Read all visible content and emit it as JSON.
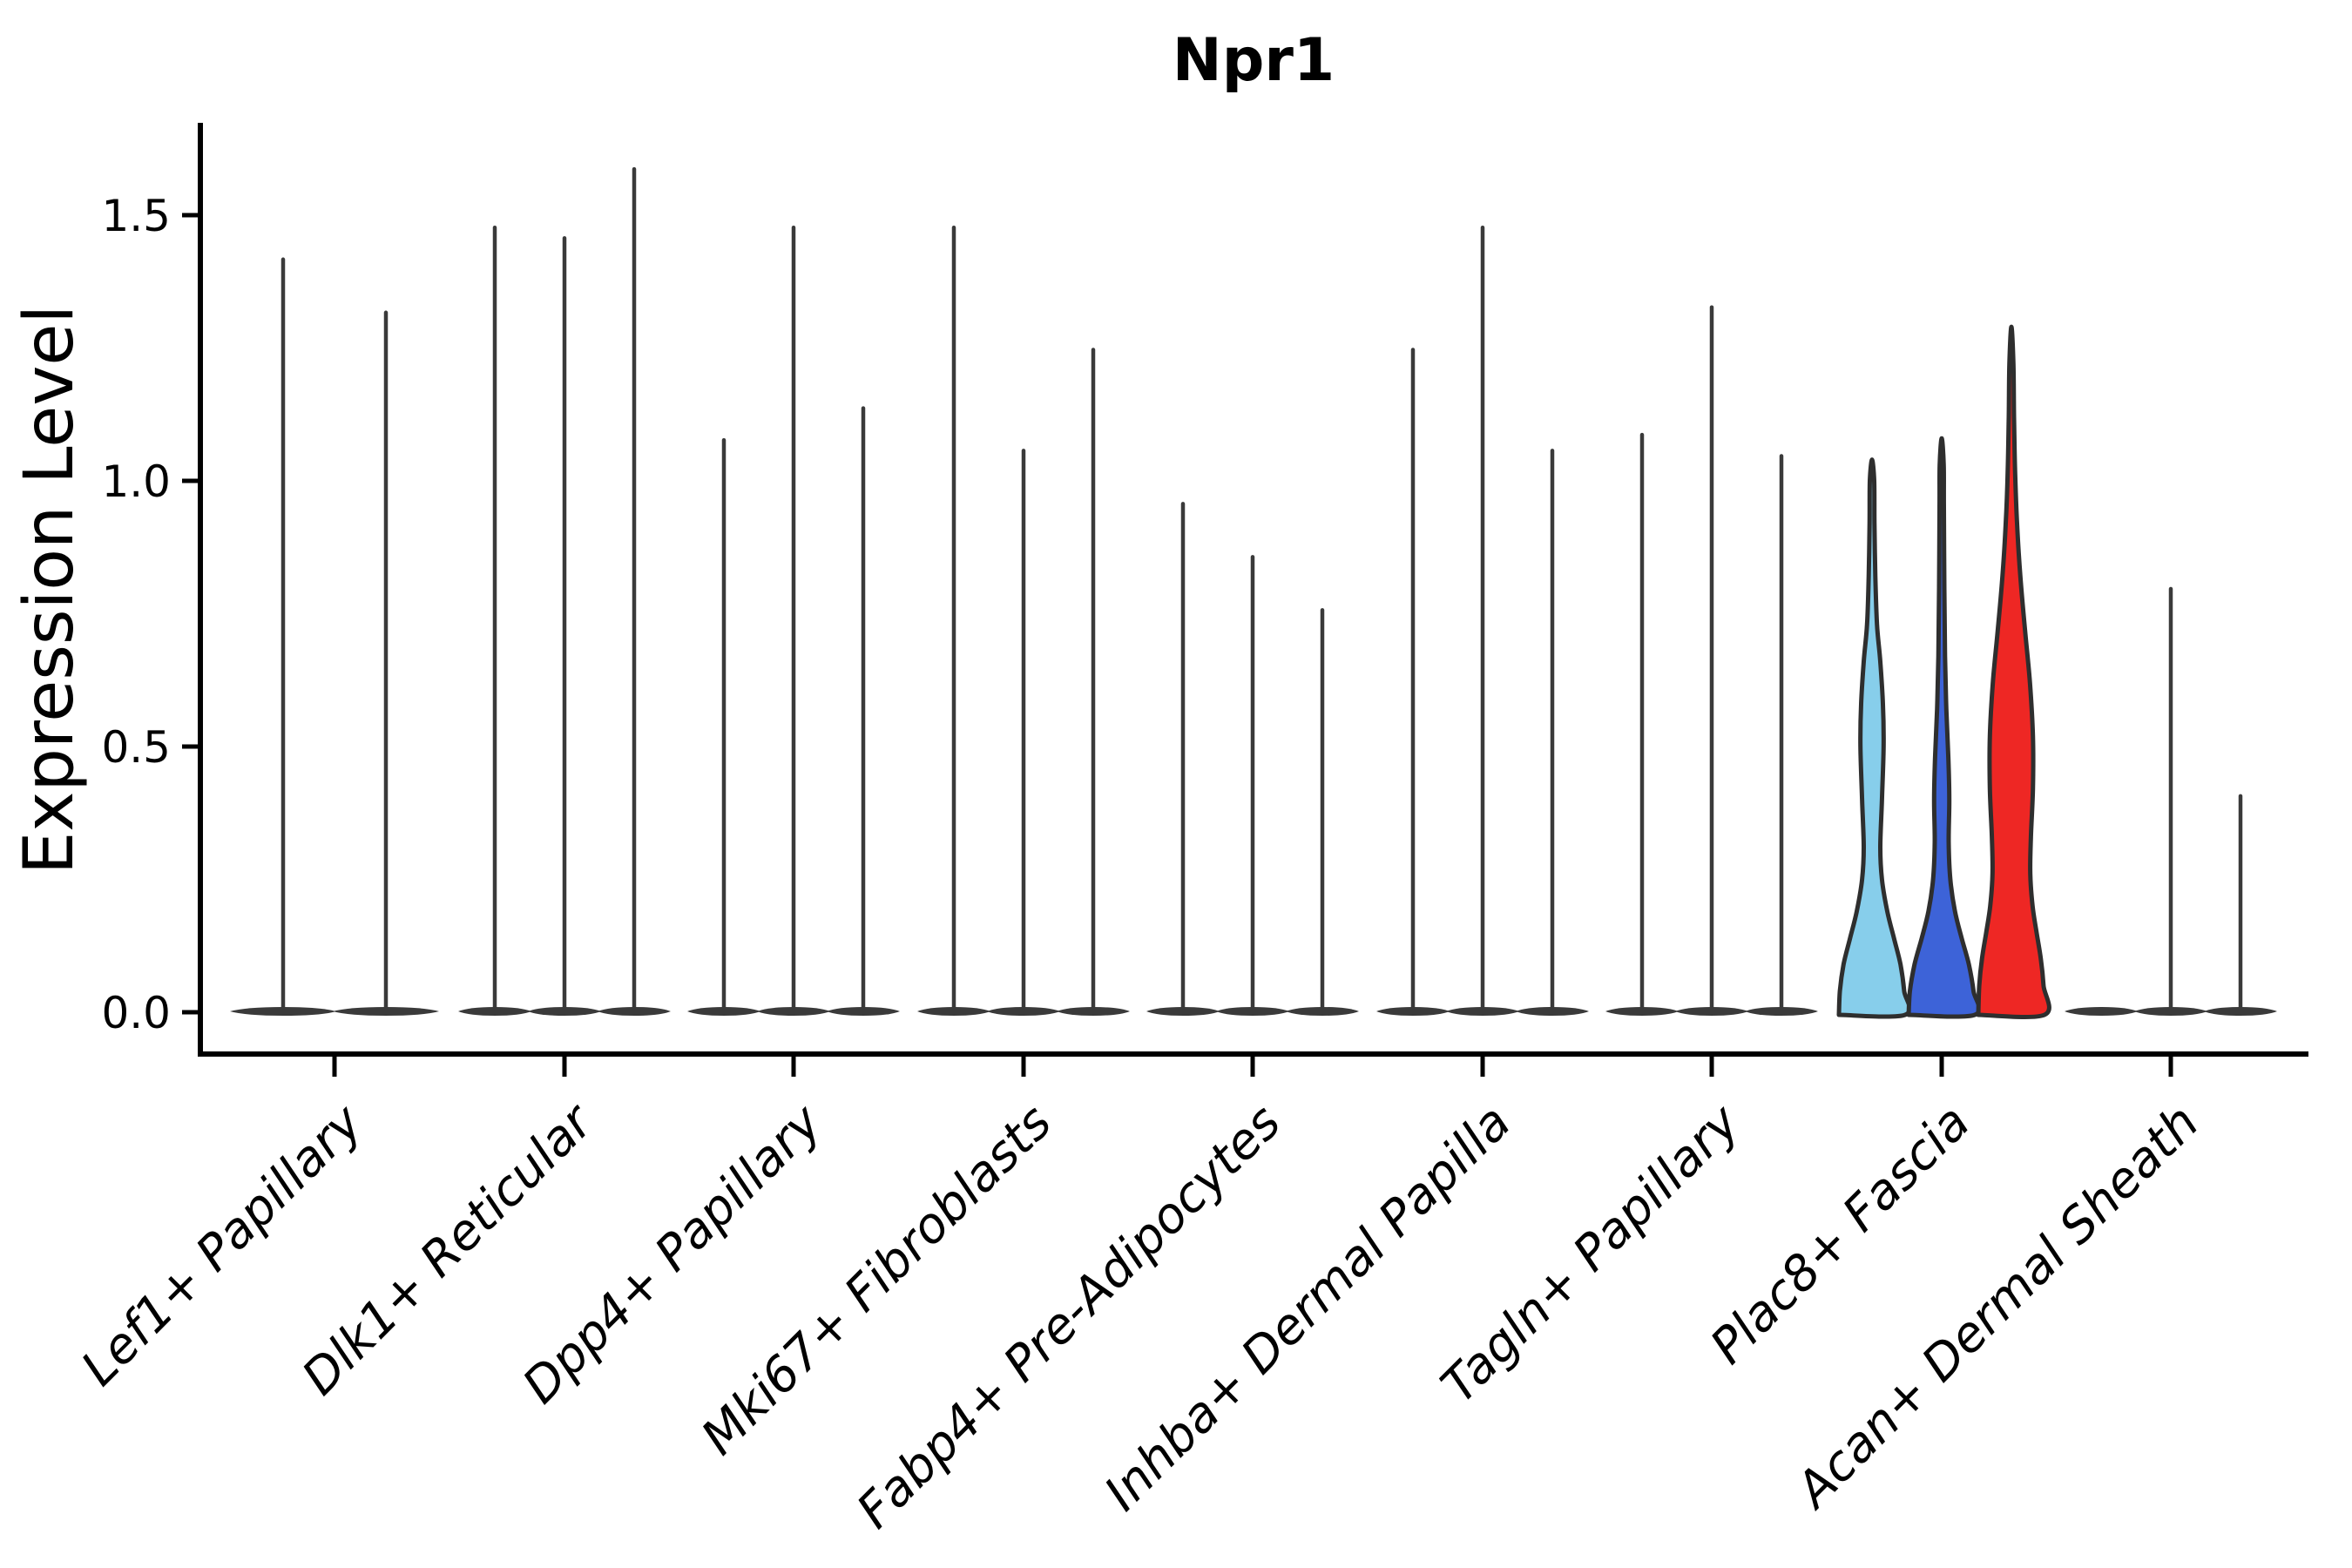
{
  "chart_data": {
    "type": "violin",
    "title": "Npr1",
    "xlabel": "",
    "ylabel": "Expression Level",
    "ytick_labels": [
      "0.0",
      "0.5",
      "1.0",
      "1.5"
    ],
    "ytick_values": [
      0,
      0.5,
      1.0,
      1.5
    ],
    "ylim": [
      -0.08,
      1.67
    ],
    "grid": false,
    "legend": "none",
    "highlighted_category": "Plac8+ Fascia",
    "categories": [
      "Lef1+ Papillary",
      "Dlk1+ Reticular",
      "Dpp4+ Papillary",
      "Mki67+ Fibroblasts",
      "Fabp4+ Pre-Adipocytes",
      "Inhba+ Dermal Papilla",
      "Tagln+ Papillary",
      "Plac8+ Fascia",
      "Acan+ Dermal Sheath"
    ],
    "groups": [
      {
        "category": "Lef1+ Papillary",
        "violins": [
          {
            "peak": 1.42,
            "style": "spike"
          },
          {
            "peak": 1.32,
            "style": "spike"
          }
        ]
      },
      {
        "category": "Dlk1+ Reticular",
        "violins": [
          {
            "peak": 1.48,
            "style": "spike"
          },
          {
            "peak": 1.46,
            "style": "spike"
          },
          {
            "peak": 1.59,
            "style": "spike"
          }
        ]
      },
      {
        "category": "Dpp4+ Papillary",
        "violins": [
          {
            "peak": 1.08,
            "style": "spike"
          },
          {
            "peak": 1.48,
            "style": "spike"
          },
          {
            "peak": 1.14,
            "style": "spike"
          }
        ]
      },
      {
        "category": "Mki67+ Fibroblasts",
        "violins": [
          {
            "peak": 1.48,
            "style": "spike"
          },
          {
            "peak": 1.06,
            "style": "spike"
          },
          {
            "peak": 1.25,
            "style": "spike"
          }
        ]
      },
      {
        "category": "Fabp4+ Pre-Adipocytes",
        "violins": [
          {
            "peak": 0.96,
            "style": "spike"
          },
          {
            "peak": 0.86,
            "style": "spike"
          },
          {
            "peak": 0.76,
            "style": "spike"
          }
        ]
      },
      {
        "category": "Inhba+ Dermal Papilla",
        "violins": [
          {
            "peak": 1.25,
            "style": "spike"
          },
          {
            "peak": 1.48,
            "style": "spike"
          },
          {
            "peak": 1.06,
            "style": "spike"
          }
        ]
      },
      {
        "category": "Tagln+ Papillary",
        "violins": [
          {
            "peak": 1.09,
            "style": "spike"
          },
          {
            "peak": 1.33,
            "style": "spike"
          },
          {
            "peak": 1.05,
            "style": "spike"
          }
        ]
      },
      {
        "category": "Plac8+ Fascia",
        "violins": [
          {
            "peak": 1.04,
            "style": "violin",
            "fill": "#87CEEB",
            "profile": [
              [
                0,
                1
              ],
              [
                0.04,
                0.97
              ],
              [
                0.09,
                0.86
              ],
              [
                0.14,
                0.66
              ],
              [
                0.19,
                0.46
              ],
              [
                0.25,
                0.3
              ],
              [
                0.31,
                0.25
              ],
              [
                0.4,
                0.3
              ],
              [
                0.5,
                0.35
              ],
              [
                0.58,
                0.33
              ],
              [
                0.66,
                0.25
              ],
              [
                0.73,
                0.15
              ],
              [
                0.82,
                0.1
              ],
              [
                0.92,
                0.075
              ],
              [
                1.0,
                0.065
              ]
            ]
          },
          {
            "peak": 1.08,
            "style": "violin",
            "fill": "#3D63D8",
            "profile": [
              [
                0,
                1
              ],
              [
                0.04,
                0.96
              ],
              [
                0.09,
                0.82
              ],
              [
                0.14,
                0.6
              ],
              [
                0.19,
                0.4
              ],
              [
                0.25,
                0.26
              ],
              [
                0.32,
                0.21
              ],
              [
                0.4,
                0.23
              ],
              [
                0.48,
                0.2
              ],
              [
                0.57,
                0.14
              ],
              [
                0.67,
                0.1
              ],
              [
                0.8,
                0.08
              ],
              [
                0.95,
                0.065
              ],
              [
                1.03,
                0.06
              ]
            ]
          },
          {
            "peak": 1.29,
            "style": "violin",
            "fill": "#EE2724",
            "profile": [
              [
                0,
                1
              ],
              [
                0.05,
                0.97
              ],
              [
                0.1,
                0.89
              ],
              [
                0.15,
                0.76
              ],
              [
                0.2,
                0.64
              ],
              [
                0.26,
                0.57
              ],
              [
                0.33,
                0.59
              ],
              [
                0.42,
                0.65
              ],
              [
                0.52,
                0.65
              ],
              [
                0.62,
                0.56
              ],
              [
                0.72,
                0.41
              ],
              [
                0.82,
                0.27
              ],
              [
                0.92,
                0.17
              ],
              [
                1.02,
                0.11
              ],
              [
                1.12,
                0.08
              ],
              [
                1.22,
                0.06
              ]
            ]
          }
        ]
      },
      {
        "category": "Acan+ Dermal Sheath",
        "violins": [
          {
            "peak": 0,
            "style": "flat"
          },
          {
            "peak": 0.8,
            "style": "spike"
          },
          {
            "peak": 0.41,
            "style": "spike"
          }
        ]
      }
    ],
    "colors": {
      "axis": "#000000",
      "spike": "#3a3a3a",
      "outline": "#2e2e2e",
      "highlight_fills": [
        "#87CEEB",
        "#3D63D8",
        "#EE2724"
      ]
    }
  }
}
